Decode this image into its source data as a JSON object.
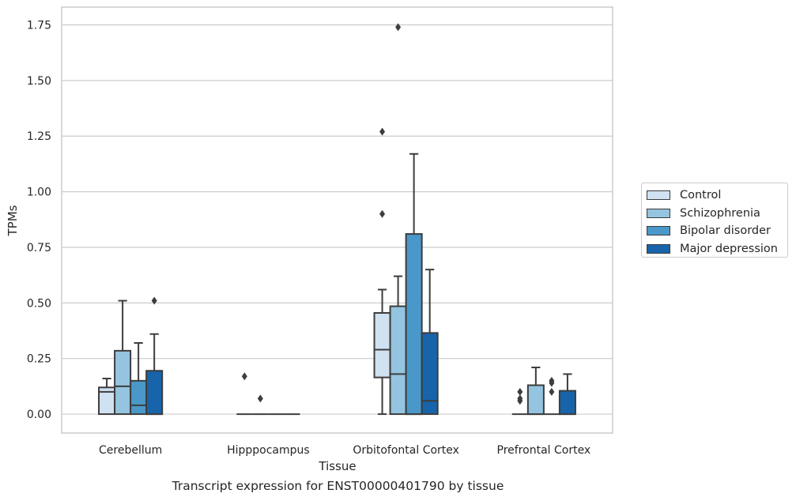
{
  "chart_data": {
    "type": "box",
    "xlabel": "Tissue",
    "ylabel": "TPMs",
    "caption": "Transcript expression for ENST00000401790 by tissue",
    "ylim": [
      -0.085,
      1.83
    ],
    "yticks": [
      0.0,
      0.25,
      0.5,
      0.75,
      1.0,
      1.25,
      1.5,
      1.75
    ],
    "ytick_labels": [
      "0.00",
      "0.25",
      "0.50",
      "0.75",
      "1.00",
      "1.25",
      "1.50",
      "1.75"
    ],
    "grid": true,
    "legend_position": "right",
    "categories": [
      "Cerebellum",
      "Hipppocampus",
      "Orbitofontal Cortex",
      "Prefrontal Cortex"
    ],
    "series": [
      {
        "name": "Control",
        "color": "#d0e1f2",
        "boxes": [
          {
            "whislo": 0.0,
            "q1": 0.0,
            "med": 0.1,
            "q3": 0.12,
            "whishi": 0.16,
            "fliers": []
          },
          {
            "whislo": 0.0,
            "q1": 0.0,
            "med": 0.0,
            "q3": 0.0,
            "whishi": 0.0,
            "fliers": [
              0.17
            ]
          },
          {
            "whislo": 0.0,
            "q1": 0.165,
            "med": 0.29,
            "q3": 0.455,
            "whishi": 0.56,
            "fliers": [
              0.9,
              1.27
            ]
          },
          {
            "whislo": 0.0,
            "q1": 0.0,
            "med": 0.0,
            "q3": 0.0,
            "whishi": 0.0,
            "fliers": [
              0.06,
              0.07,
              0.1
            ]
          }
        ]
      },
      {
        "name": "Schizophrenia",
        "color": "#94c4df",
        "boxes": [
          {
            "whislo": 0.0,
            "q1": 0.0,
            "med": 0.125,
            "q3": 0.285,
            "whishi": 0.51,
            "fliers": []
          },
          {
            "whislo": 0.0,
            "q1": 0.0,
            "med": 0.0,
            "q3": 0.0,
            "whishi": 0.0,
            "fliers": [
              0.07
            ]
          },
          {
            "whislo": 0.0,
            "q1": 0.0,
            "med": 0.18,
            "q3": 0.485,
            "whishi": 0.62,
            "fliers": [
              1.74
            ]
          },
          {
            "whislo": 0.0,
            "q1": 0.0,
            "med": 0.0,
            "q3": 0.13,
            "whishi": 0.21,
            "fliers": []
          }
        ]
      },
      {
        "name": "Bipolar disorder",
        "color": "#4a98c9",
        "boxes": [
          {
            "whislo": 0.0,
            "q1": 0.0,
            "med": 0.04,
            "q3": 0.15,
            "whishi": 0.32,
            "fliers": []
          },
          {
            "whislo": 0.0,
            "q1": 0.0,
            "med": 0.0,
            "q3": 0.0,
            "whishi": 0.0,
            "fliers": []
          },
          {
            "whislo": 0.0,
            "q1": 0.0,
            "med": 0.0,
            "q3": 0.81,
            "whishi": 1.17,
            "fliers": []
          },
          {
            "whislo": 0.0,
            "q1": 0.0,
            "med": 0.0,
            "q3": 0.0,
            "whishi": 0.0,
            "fliers": [
              0.1,
              0.14,
              0.15
            ]
          }
        ]
      },
      {
        "name": "Major depression",
        "color": "#1764ab",
        "boxes": [
          {
            "whislo": 0.0,
            "q1": 0.0,
            "med": 0.0,
            "q3": 0.195,
            "whishi": 0.36,
            "fliers": [
              0.51
            ]
          },
          {
            "whislo": 0.0,
            "q1": 0.0,
            "med": 0.0,
            "q3": 0.0,
            "whishi": 0.0,
            "fliers": []
          },
          {
            "whislo": 0.0,
            "q1": 0.0,
            "med": 0.06,
            "q3": 0.365,
            "whishi": 0.65,
            "fliers": []
          },
          {
            "whislo": 0.0,
            "q1": 0.0,
            "med": 0.0,
            "q3": 0.105,
            "whishi": 0.18,
            "fliers": []
          }
        ]
      }
    ]
  }
}
